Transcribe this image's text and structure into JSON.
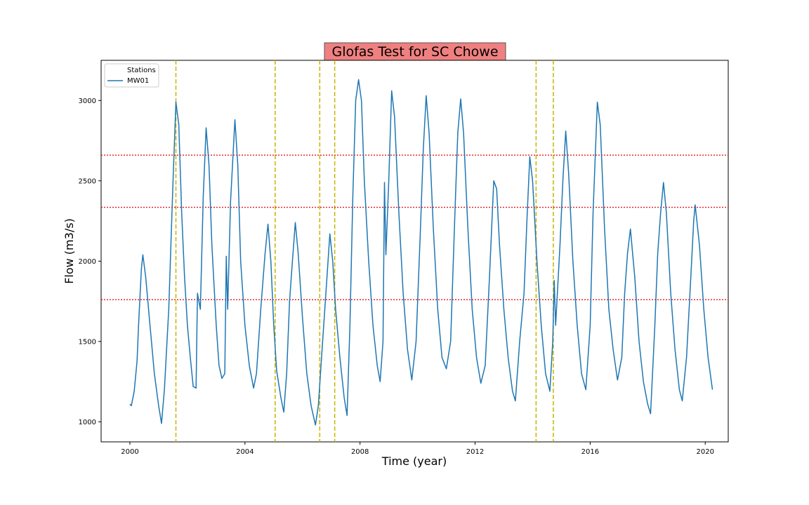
{
  "chart_data": {
    "type": "line",
    "title": "Glofas Test for SC Chowe",
    "xlabel": "Time (year)",
    "ylabel": "Flow (m3/s)",
    "xlim": [
      1999.0,
      2020.8
    ],
    "ylim": [
      875,
      3250
    ],
    "xticks": [
      2000,
      2004,
      2008,
      2012,
      2016,
      2020
    ],
    "yticks": [
      1000,
      1500,
      2000,
      2500,
      3000
    ],
    "grid": false,
    "legend": {
      "title": "Stations",
      "placement": "top-left"
    },
    "series": [
      {
        "name": "MW01",
        "color": "#1f77b4",
        "points": [
          [
            2000.0,
            1110
          ],
          [
            2000.05,
            1100
          ],
          [
            2000.15,
            1190
          ],
          [
            2000.25,
            1380
          ],
          [
            2000.3,
            1600
          ],
          [
            2000.4,
            1950
          ],
          [
            2000.45,
            2040
          ],
          [
            2000.55,
            1900
          ],
          [
            2000.7,
            1600
          ],
          [
            2000.85,
            1300
          ],
          [
            2001.0,
            1100
          ],
          [
            2001.1,
            990
          ],
          [
            2001.2,
            1200
          ],
          [
            2001.35,
            1700
          ],
          [
            2001.5,
            2500
          ],
          [
            2001.6,
            2990
          ],
          [
            2001.7,
            2850
          ],
          [
            2001.8,
            2300
          ],
          [
            2001.9,
            1900
          ],
          [
            2002.0,
            1600
          ],
          [
            2002.1,
            1400
          ],
          [
            2002.2,
            1220
          ],
          [
            2002.3,
            1210
          ],
          [
            2002.35,
            1800
          ],
          [
            2002.45,
            1700
          ],
          [
            2002.55,
            2400
          ],
          [
            2002.65,
            2830
          ],
          [
            2002.75,
            2600
          ],
          [
            2002.85,
            2100
          ],
          [
            2003.0,
            1600
          ],
          [
            2003.1,
            1350
          ],
          [
            2003.2,
            1270
          ],
          [
            2003.3,
            1300
          ],
          [
            2003.35,
            2030
          ],
          [
            2003.4,
            1700
          ],
          [
            2003.5,
            2370
          ],
          [
            2003.65,
            2880
          ],
          [
            2003.75,
            2600
          ],
          [
            2003.85,
            2000
          ],
          [
            2004.0,
            1600
          ],
          [
            2004.15,
            1350
          ],
          [
            2004.3,
            1210
          ],
          [
            2004.4,
            1300
          ],
          [
            2004.55,
            1700
          ],
          [
            2004.7,
            2050
          ],
          [
            2004.8,
            2230
          ],
          [
            2004.9,
            2000
          ],
          [
            2005.0,
            1600
          ],
          [
            2005.1,
            1320
          ],
          [
            2005.25,
            1150
          ],
          [
            2005.35,
            1060
          ],
          [
            2005.45,
            1300
          ],
          [
            2005.55,
            1750
          ],
          [
            2005.65,
            2000
          ],
          [
            2005.75,
            2240
          ],
          [
            2005.85,
            2050
          ],
          [
            2006.0,
            1650
          ],
          [
            2006.15,
            1300
          ],
          [
            2006.3,
            1100
          ],
          [
            2006.45,
            980
          ],
          [
            2006.55,
            1100
          ],
          [
            2006.7,
            1500
          ],
          [
            2006.85,
            1900
          ],
          [
            2006.95,
            2170
          ],
          [
            2007.05,
            2000
          ],
          [
            2007.15,
            1700
          ],
          [
            2007.3,
            1400
          ],
          [
            2007.45,
            1150
          ],
          [
            2007.55,
            1040
          ],
          [
            2007.65,
            1600
          ],
          [
            2007.75,
            2400
          ],
          [
            2007.85,
            3000
          ],
          [
            2007.95,
            3130
          ],
          [
            2008.05,
            3000
          ],
          [
            2008.15,
            2500
          ],
          [
            2008.3,
            2000
          ],
          [
            2008.45,
            1600
          ],
          [
            2008.6,
            1350
          ],
          [
            2008.7,
            1250
          ],
          [
            2008.8,
            1500
          ],
          [
            2008.85,
            2490
          ],
          [
            2008.9,
            2040
          ],
          [
            2009.0,
            2500
          ],
          [
            2009.1,
            3060
          ],
          [
            2009.2,
            2900
          ],
          [
            2009.35,
            2300
          ],
          [
            2009.5,
            1800
          ],
          [
            2009.65,
            1450
          ],
          [
            2009.8,
            1260
          ],
          [
            2009.95,
            1500
          ],
          [
            2010.1,
            2200
          ],
          [
            2010.2,
            2700
          ],
          [
            2010.3,
            3030
          ],
          [
            2010.4,
            2800
          ],
          [
            2010.55,
            2200
          ],
          [
            2010.7,
            1700
          ],
          [
            2010.85,
            1400
          ],
          [
            2011.0,
            1330
          ],
          [
            2011.15,
            1500
          ],
          [
            2011.3,
            2300
          ],
          [
            2011.4,
            2800
          ],
          [
            2011.5,
            3010
          ],
          [
            2011.6,
            2800
          ],
          [
            2011.75,
            2200
          ],
          [
            2011.9,
            1700
          ],
          [
            2012.05,
            1400
          ],
          [
            2012.2,
            1240
          ],
          [
            2012.35,
            1350
          ],
          [
            2012.5,
            1900
          ],
          [
            2012.65,
            2500
          ],
          [
            2012.75,
            2450
          ],
          [
            2012.85,
            2100
          ],
          [
            2013.0,
            1700
          ],
          [
            2013.15,
            1400
          ],
          [
            2013.3,
            1190
          ],
          [
            2013.4,
            1130
          ],
          [
            2013.55,
            1500
          ],
          [
            2013.7,
            1800
          ],
          [
            2013.8,
            2250
          ],
          [
            2013.9,
            2650
          ],
          [
            2014.0,
            2500
          ],
          [
            2014.15,
            2000
          ],
          [
            2014.3,
            1600
          ],
          [
            2014.45,
            1300
          ],
          [
            2014.6,
            1190
          ],
          [
            2014.7,
            1500
          ],
          [
            2014.75,
            1880
          ],
          [
            2014.8,
            1600
          ],
          [
            2014.95,
            2100
          ],
          [
            2015.05,
            2500
          ],
          [
            2015.15,
            2810
          ],
          [
            2015.25,
            2550
          ],
          [
            2015.4,
            2000
          ],
          [
            2015.55,
            1600
          ],
          [
            2015.7,
            1300
          ],
          [
            2015.85,
            1200
          ],
          [
            2016.0,
            1600
          ],
          [
            2016.1,
            2300
          ],
          [
            2016.25,
            2990
          ],
          [
            2016.35,
            2850
          ],
          [
            2016.5,
            2200
          ],
          [
            2016.65,
            1700
          ],
          [
            2016.8,
            1450
          ],
          [
            2016.95,
            1260
          ],
          [
            2017.1,
            1400
          ],
          [
            2017.2,
            1800
          ],
          [
            2017.3,
            2050
          ],
          [
            2017.4,
            2200
          ],
          [
            2017.55,
            1900
          ],
          [
            2017.7,
            1500
          ],
          [
            2017.85,
            1250
          ],
          [
            2018.0,
            1110
          ],
          [
            2018.1,
            1050
          ],
          [
            2018.25,
            1600
          ],
          [
            2018.35,
            2050
          ],
          [
            2018.45,
            2300
          ],
          [
            2018.55,
            2490
          ],
          [
            2018.65,
            2300
          ],
          [
            2018.8,
            1800
          ],
          [
            2018.95,
            1450
          ],
          [
            2019.1,
            1200
          ],
          [
            2019.2,
            1130
          ],
          [
            2019.35,
            1400
          ],
          [
            2019.5,
            1900
          ],
          [
            2019.6,
            2250
          ],
          [
            2019.65,
            2350
          ],
          [
            2019.8,
            2100
          ],
          [
            2019.95,
            1700
          ],
          [
            2020.1,
            1400
          ],
          [
            2020.25,
            1200
          ]
        ]
      }
    ],
    "threshold_lines": [
      {
        "y": 2660,
        "color": "#e31a1c",
        "style": "dotted"
      },
      {
        "y": 2335,
        "color": "#e31a1c",
        "style": "dotted"
      },
      {
        "y": 1760,
        "color": "#e31a1c",
        "style": "dotted"
      }
    ],
    "event_lines": [
      {
        "x": 2001.6,
        "color": "#c8b400",
        "style": "dashed"
      },
      {
        "x": 2005.05,
        "color": "#c8b400",
        "style": "dashed"
      },
      {
        "x": 2006.6,
        "color": "#c8b400",
        "style": "dashed"
      },
      {
        "x": 2007.12,
        "color": "#c8b400",
        "style": "dashed"
      },
      {
        "x": 2014.12,
        "color": "#c8b400",
        "style": "dashed"
      },
      {
        "x": 2014.72,
        "color": "#c8b400",
        "style": "dashed"
      }
    ],
    "title_box_color": "#f08080"
  }
}
